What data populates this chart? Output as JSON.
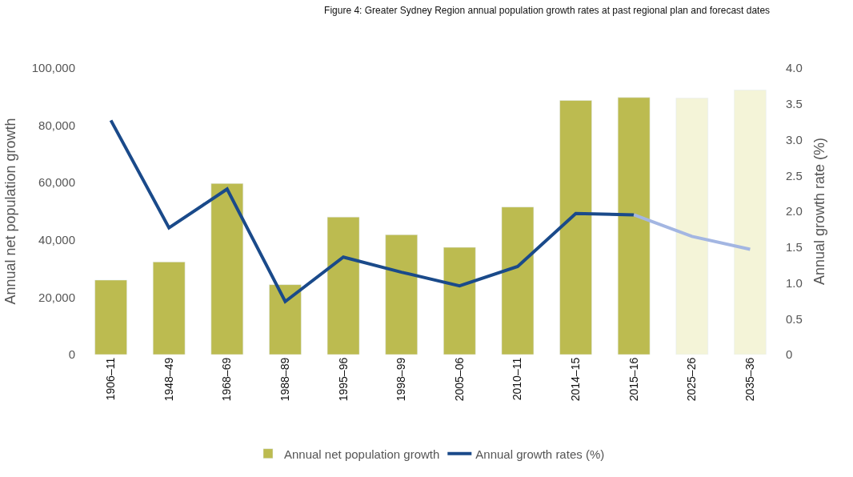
{
  "chart_data": {
    "type": "bar",
    "title": "Figure 4: Greater Sydney Region annual population growth rates at past regional plan and forecast dates",
    "categories": [
      "1906–11",
      "1948–49",
      "1968–69",
      "1988–89",
      "1995–96",
      "1998–99",
      "2005–06",
      "2010–11",
      "2014–15",
      "2015–16",
      "2025–26",
      "2035–36"
    ],
    "series": [
      {
        "name": "Annual net population growth",
        "color": "#bcbb50",
        "colors": [
          "#bcbb50",
          "#bcbb50",
          "#bcbb50",
          "#bcbb50",
          "#bcbb50",
          "#bcbb50",
          "#bcbb50",
          "#bcbb50",
          "#bcbb50",
          "#bcbb50",
          "#f4f4d8",
          "#f4f4d8"
        ],
        "values": [
          26000,
          32300,
          59700,
          24400,
          48000,
          41800,
          37400,
          51500,
          88700,
          89700,
          89500,
          92300
        ]
      },
      {
        "name": "Annual growth rates (%)",
        "type": "line",
        "axis": "y2",
        "color": "#1a4a8a",
        "values": [
          3.27,
          1.77,
          2.31,
          0.74,
          1.36,
          1.15,
          0.96,
          1.23,
          1.97,
          1.95,
          null,
          null
        ]
      },
      {
        "type": "line",
        "axis": "y2",
        "color": "#a3b6e2",
        "values": [
          null,
          null,
          null,
          null,
          null,
          null,
          null,
          null,
          null,
          1.95,
          1.65,
          1.47
        ]
      }
    ],
    "ylabel": "Annual net population growth",
    "y2label": "Annual growth rate (%)",
    "ylim": [
      0,
      100000
    ],
    "yticks": [
      {
        "value": 0,
        "label": "0"
      },
      {
        "value": 20000,
        "label": "20,000"
      },
      {
        "value": 40000,
        "label": "40,000"
      },
      {
        "value": 60000,
        "label": "60,000"
      },
      {
        "value": 80000,
        "label": "80,000"
      },
      {
        "value": 100000,
        "label": "100,000"
      }
    ],
    "y2lim": [
      0,
      4
    ],
    "y2ticks": [
      {
        "value": 0,
        "label": "0"
      },
      {
        "value": 0.5,
        "label": "0.5"
      },
      {
        "value": 1,
        "label": "1.0"
      },
      {
        "value": 1.5,
        "label": "1.5"
      },
      {
        "value": 2,
        "label": "2.0"
      },
      {
        "value": 2.5,
        "label": "2.5"
      },
      {
        "value": 3,
        "label": "3.0"
      },
      {
        "value": 3.5,
        "label": "3.5"
      },
      {
        "value": 4,
        "label": "4.0"
      }
    ],
    "legend": "bottom"
  }
}
